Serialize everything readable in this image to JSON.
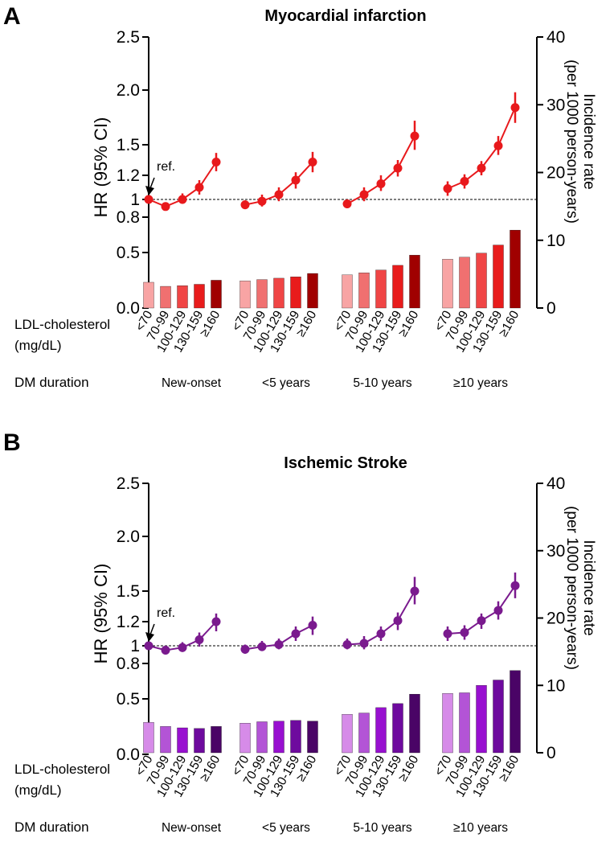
{
  "ylabel_left": "HR (95% CI)",
  "ylabel_right": [
    "Incidence rate",
    "(per 1000 person-years)"
  ],
  "row_labels": {
    "ldl_1": "LDL-cholesterol",
    "ldl_2": "(mg/dL)",
    "dm": "DM duration"
  },
  "ref_label": "ref.",
  "left_ticks": [
    "2.5",
    "2.0",
    "1.5",
    "1.2",
    "1",
    "0.8",
    "0.5",
    "0.0"
  ],
  "right_ticks": [
    "40",
    "30",
    "20",
    "10",
    "0"
  ],
  "categories": [
    "<70",
    "70-99",
    "100-129",
    "130-159",
    "≥160"
  ],
  "groups": [
    "New-onset",
    "<5 years",
    "5-10 years",
    "≥10 years"
  ],
  "chart_data": [
    {
      "type": "bar+line",
      "panel": "A",
      "title": "Myocardial infarction",
      "xlabel": "LDL-cholesterol (mg/dL)",
      "ylabel": "HR (95% CI)",
      "y2label": "Incidence rate (per 1000 person-years)",
      "y2lim": [
        0,
        40
      ],
      "reference_line": 1.0,
      "colors": [
        "#f8a4a4",
        "#f07070",
        "#f04545",
        "#e81c1c",
        "#a00000"
      ],
      "line_color": "#e8191c",
      "series": [
        {
          "name": "New-onset",
          "hr": [
            1.0,
            0.92,
            1.0,
            1.1,
            1.33
          ],
          "ci_low": [
            1.0,
            0.88,
            0.95,
            1.04,
            1.24
          ],
          "ci_high": [
            1.0,
            0.96,
            1.05,
            1.16,
            1.42
          ],
          "incidence": [
            3.8,
            3.2,
            3.3,
            3.5,
            4.1
          ]
        },
        {
          "name": "<5 years",
          "hr": [
            0.94,
            0.98,
            1.04,
            1.16,
            1.33
          ],
          "ci_low": [
            0.89,
            0.92,
            0.98,
            1.09,
            1.23
          ],
          "ci_high": [
            0.99,
            1.04,
            1.1,
            1.23,
            1.43
          ],
          "incidence": [
            4.0,
            4.2,
            4.4,
            4.6,
            5.1
          ]
        },
        {
          "name": "5-10 years",
          "hr": [
            0.95,
            1.04,
            1.13,
            1.27,
            1.58
          ],
          "ci_low": [
            0.9,
            0.98,
            1.07,
            1.19,
            1.45
          ],
          "ci_high": [
            1.0,
            1.1,
            1.2,
            1.35,
            1.72
          ],
          "incidence": [
            4.9,
            5.2,
            5.6,
            6.3,
            7.8
          ]
        },
        {
          "name": "≥10 years",
          "hr": [
            1.09,
            1.15,
            1.27,
            1.49,
            1.84
          ],
          "ci_low": [
            1.03,
            1.09,
            1.2,
            1.4,
            1.7
          ],
          "ci_high": [
            1.15,
            1.21,
            1.34,
            1.58,
            1.98
          ],
          "incidence": [
            7.2,
            7.5,
            8.1,
            9.3,
            11.5
          ]
        }
      ]
    },
    {
      "type": "bar+line",
      "panel": "B",
      "title": "Ischemic Stroke",
      "xlabel": "LDL-cholesterol (mg/dL)",
      "ylabel": "HR (95% CI)",
      "y2label": "Incidence rate (per 1000 person-years)",
      "y2lim": [
        0,
        40
      ],
      "reference_line": 1.0,
      "colors": [
        "#d68be8",
        "#b354d6",
        "#9810d0",
        "#6e0a9e",
        "#4a0466"
      ],
      "line_color": "#7a1a8e",
      "series": [
        {
          "name": "New-onset",
          "hr": [
            1.0,
            0.95,
            0.98,
            1.05,
            1.2
          ],
          "ci_low": [
            1.0,
            0.9,
            0.93,
            0.99,
            1.12
          ],
          "ci_high": [
            1.0,
            1.0,
            1.03,
            1.11,
            1.28
          ],
          "incidence": [
            4.5,
            3.9,
            3.7,
            3.6,
            3.9
          ]
        },
        {
          "name": "<5 years",
          "hr": [
            0.96,
            0.99,
            1.01,
            1.1,
            1.17
          ],
          "ci_low": [
            0.91,
            0.94,
            0.96,
            1.04,
            1.09
          ],
          "ci_high": [
            1.01,
            1.04,
            1.06,
            1.16,
            1.25
          ],
          "incidence": [
            4.4,
            4.6,
            4.7,
            4.8,
            4.7
          ]
        },
        {
          "name": "5-10 years",
          "hr": [
            1.01,
            1.02,
            1.1,
            1.21,
            1.5
          ],
          "ci_low": [
            0.96,
            0.96,
            1.04,
            1.13,
            1.37
          ],
          "ci_high": [
            1.06,
            1.08,
            1.16,
            1.29,
            1.63
          ],
          "incidence": [
            5.7,
            5.9,
            6.7,
            7.3,
            8.7
          ]
        },
        {
          "name": "≥10 years",
          "hr": [
            1.1,
            1.11,
            1.21,
            1.31,
            1.55
          ],
          "ci_low": [
            1.04,
            1.05,
            1.14,
            1.22,
            1.43
          ],
          "ci_high": [
            1.16,
            1.17,
            1.28,
            1.4,
            1.67
          ],
          "incidence": [
            8.8,
            8.9,
            10.0,
            10.8,
            12.2
          ]
        }
      ]
    }
  ]
}
